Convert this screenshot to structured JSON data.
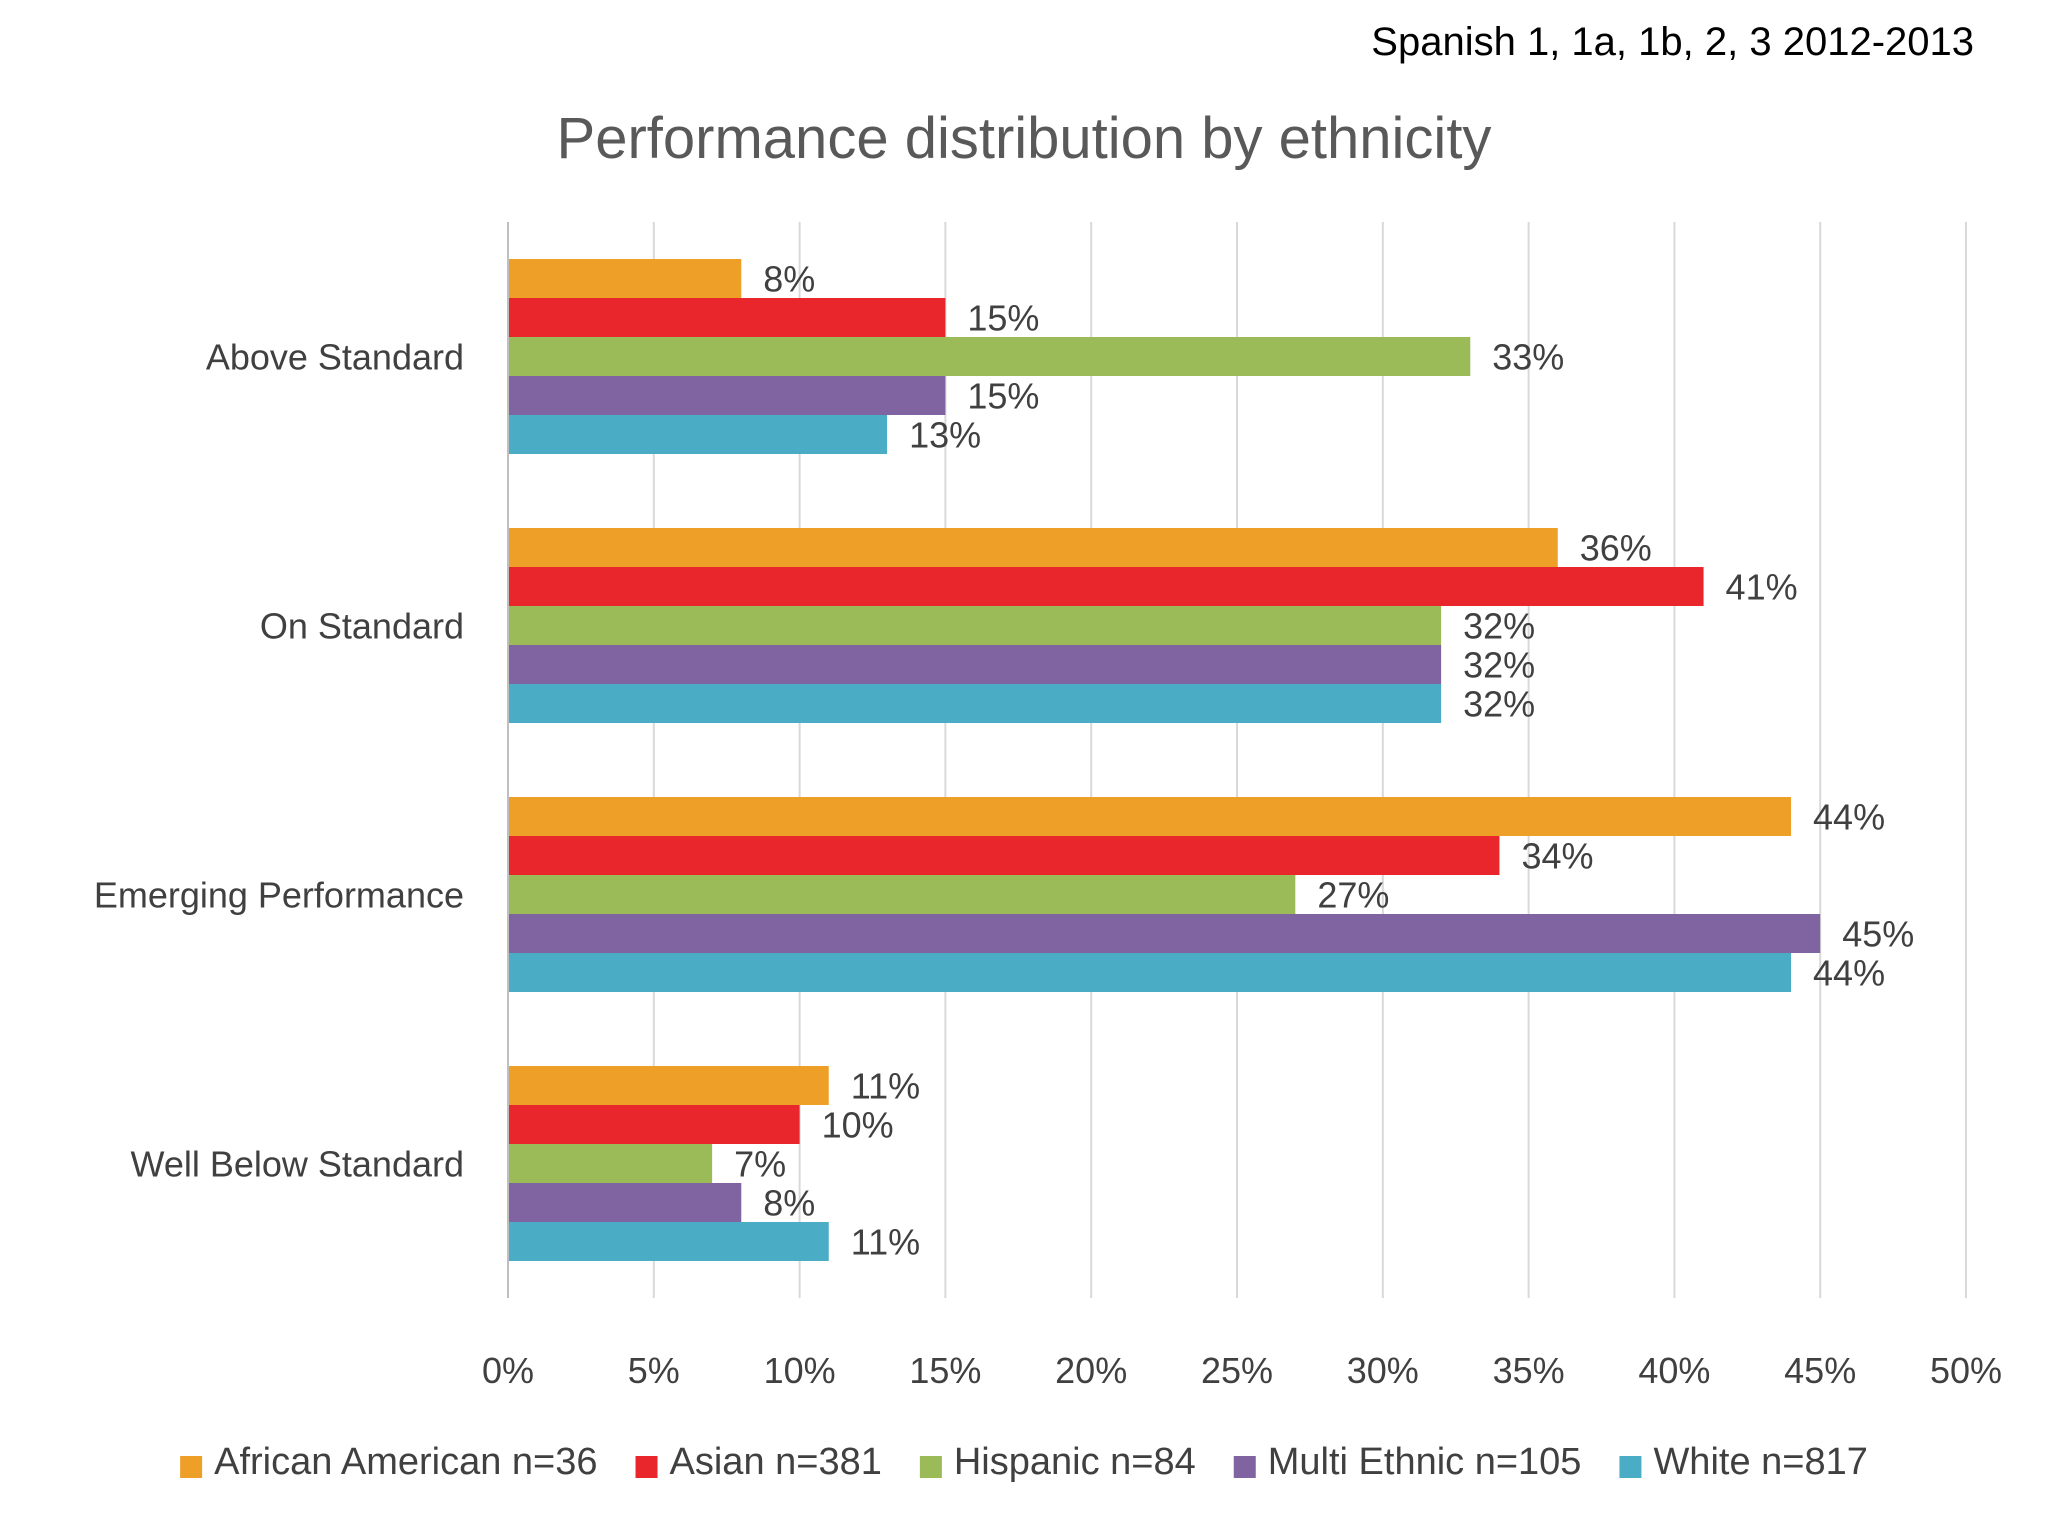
{
  "chart_data": {
    "type": "bar",
    "orientation": "horizontal",
    "subtitle": "Spanish 1, 1a, 1b, 2, 3 2012-2013",
    "title": "Performance distribution by ethnicity",
    "categories": [
      "Above Standard",
      "On Standard",
      "Emerging Performance",
      "Well  Below Standard"
    ],
    "series": [
      {
        "name": "African American n=36",
        "color": "#ED9F28",
        "values": [
          8,
          36,
          44,
          11
        ],
        "labels": [
          "8%",
          "36%",
          "44%",
          "11%"
        ]
      },
      {
        "name": "Asian n=381",
        "color": "#E8262B",
        "values": [
          15,
          41,
          34,
          10
        ],
        "labels": [
          "15%",
          "41%",
          "34%",
          "10%"
        ]
      },
      {
        "name": "Hispanic n=84",
        "color": "#9BBB59",
        "values": [
          33,
          32,
          27,
          7
        ],
        "labels": [
          "33%",
          "32%",
          "27%",
          "7%"
        ]
      },
      {
        "name": "Multi Ethnic n=105",
        "color": "#8064A2",
        "values": [
          15,
          32,
          45,
          8
        ],
        "labels": [
          "15%",
          "32%",
          "45%",
          "8%"
        ]
      },
      {
        "name": "White n=817",
        "color": "#4BACC6",
        "values": [
          13,
          32,
          44,
          11
        ],
        "labels": [
          "13%",
          "32%",
          "44%",
          "11%"
        ]
      }
    ],
    "xlim": [
      0,
      50
    ],
    "x_ticks": [
      "0%",
      "5%",
      "10%",
      "15%",
      "20%",
      "25%",
      "30%",
      "35%",
      "40%",
      "45%",
      "50%"
    ],
    "grid": true,
    "legend_position": "bottom"
  }
}
